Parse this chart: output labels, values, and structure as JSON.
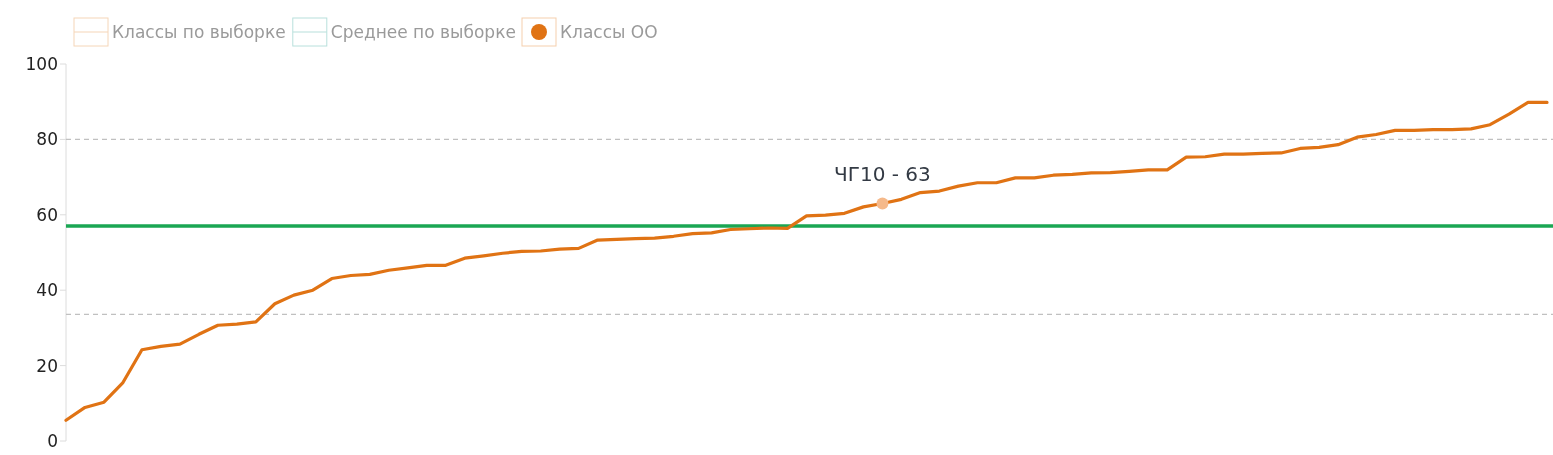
{
  "chart_data": {
    "type": "line",
    "categories": [
      null,
      null,
      null,
      null,
      null,
      null,
      null,
      null,
      null,
      null,
      null,
      null,
      null,
      null,
      null,
      null,
      null,
      null,
      null,
      null,
      null,
      null,
      null,
      null,
      null,
      null,
      null,
      null,
      null,
      null,
      null,
      null,
      null,
      null,
      null,
      null,
      null,
      null,
      null,
      null,
      null,
      null,
      null,
      null,
      null,
      null,
      null,
      null,
      null,
      null,
      null,
      null,
      null,
      null,
      null,
      null,
      null,
      null,
      null,
      null,
      null,
      null,
      null,
      null,
      null,
      null,
      null,
      null,
      null,
      null,
      null,
      null,
      null,
      null,
      null,
      null,
      null,
      null,
      null
    ],
    "series": [
      {
        "name": "Классы по выборке",
        "color": "#f5d6b8",
        "values": [
          null,
          null,
          null,
          null,
          null,
          null,
          null,
          null,
          null,
          null,
          null,
          null,
          null,
          null,
          null,
          null,
          null,
          null,
          null,
          null,
          null,
          null,
          null,
          null,
          null,
          null,
          null,
          null,
          null,
          null,
          null,
          null,
          null,
          null,
          null,
          null,
          null,
          null,
          null,
          null,
          null,
          null,
          null,
          null,
          null,
          null,
          null,
          null,
          null,
          null,
          null,
          null,
          null,
          null,
          null,
          null,
          null,
          null,
          null,
          null,
          null,
          null,
          null,
          null,
          null,
          null,
          null,
          null,
          null,
          null,
          null,
          null,
          null,
          null,
          null,
          null,
          null,
          null,
          null
        ]
      },
      {
        "name": "Среднее по выборке",
        "color": "#b8e0dc",
        "values": [
          null,
          null,
          null,
          null,
          null,
          null,
          null,
          null,
          null,
          null,
          null,
          null,
          null,
          null,
          null,
          null,
          null,
          null,
          null,
          null,
          null,
          null,
          null,
          null,
          null,
          null,
          null,
          null,
          null,
          null,
          null,
          null,
          null,
          null,
          null,
          null,
          null,
          null,
          null,
          null,
          null,
          null,
          null,
          null,
          null,
          null,
          null,
          null,
          null,
          null,
          null,
          null,
          null,
          null,
          null,
          null,
          null,
          null,
          null,
          null,
          null,
          null,
          null,
          null,
          null,
          null,
          null,
          null,
          null,
          null,
          null,
          null,
          null,
          null,
          null,
          null,
          null,
          null,
          null
        ]
      },
      {
        "name": "Классы ОО",
        "color": "#e07314",
        "values": [
          5.5,
          8.9,
          10.3,
          15.5,
          24.2,
          25.1,
          25.7,
          28.3,
          30.7,
          31.0,
          31.6,
          36.4,
          38.7,
          40.0,
          43.1,
          43.9,
          44.2,
          45.3,
          45.9,
          46.6,
          46.6,
          48.5,
          49.1,
          49.8,
          50.3,
          50.4,
          50.9,
          51.1,
          53.3,
          53.5,
          53.7,
          53.8,
          54.3,
          55.0,
          55.2,
          56.1,
          56.3,
          56.5,
          56.4,
          59.7,
          59.9,
          60.4,
          62.1,
          63.0,
          64.1,
          65.9,
          66.3,
          67.6,
          68.5,
          68.5,
          69.8,
          69.8,
          70.5,
          70.7,
          71.1,
          71.2,
          71.5,
          71.9,
          71.9,
          75.3,
          75.4,
          76.1,
          76.1,
          76.3,
          76.4,
          77.6,
          77.9,
          78.6,
          80.6,
          81.3,
          82.4,
          82.4,
          82.6,
          82.6,
          82.8,
          83.9,
          86.7,
          89.8,
          89.8
        ]
      }
    ],
    "ylim": [
      0,
      100
    ],
    "yticks": [
      0,
      20,
      40,
      60,
      80,
      100
    ],
    "ref_lines": [
      {
        "axis": "y",
        "value": 57,
        "color": "#1aa653",
        "line_style": "solid"
      },
      {
        "axis": "y",
        "value": 80,
        "color": "#c0c0c0",
        "line_style": "dashed"
      },
      {
        "axis": "y",
        "value": 33.6,
        "color": "#c0c0c0",
        "line_style": "dashed"
      }
    ],
    "annotations": [
      {
        "text": "ЧГ10 - 63",
        "y": 63
      }
    ],
    "legend": "top left"
  }
}
